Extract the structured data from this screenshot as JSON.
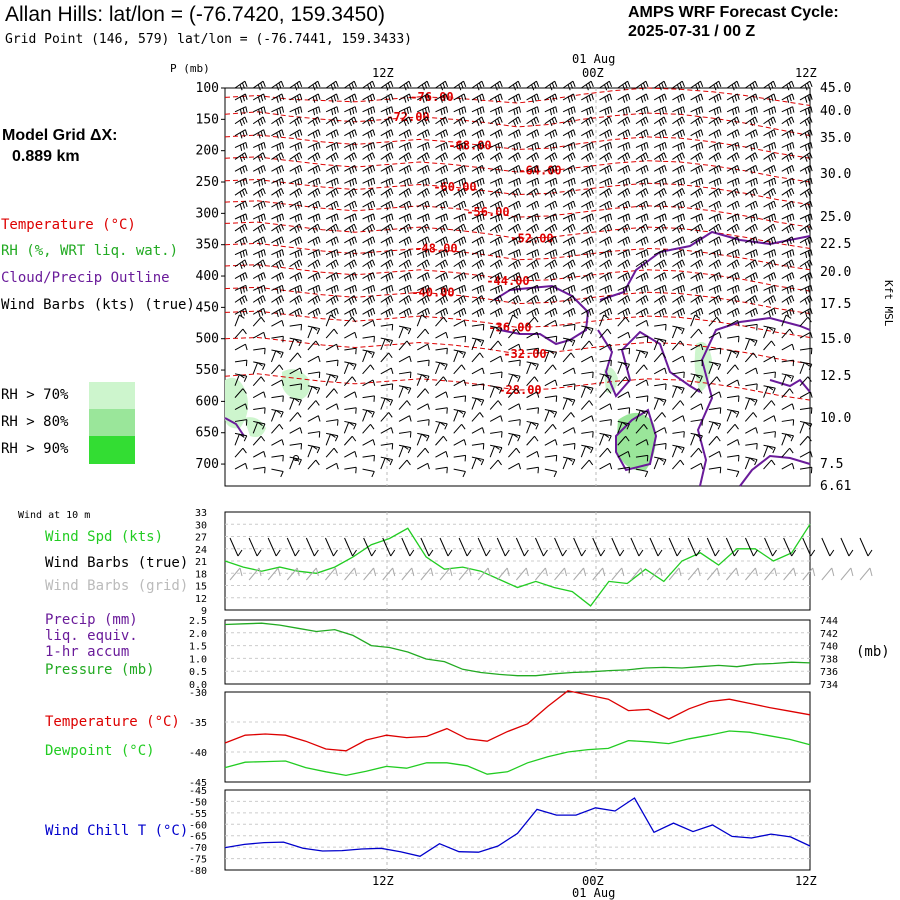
{
  "header": {
    "title": "Allan Hills:  lat/lon = (-76.7420, 159.3450)",
    "subtitle": "Grid Point (146, 579) lat/lon = (-76.7441, 159.3433)",
    "cycle_line1": "AMPS WRF Forecast Cycle:",
    "cycle_line2": "2025-07-31 / 00  Z"
  },
  "model_grid": {
    "line1": "Model Grid ΔX:",
    "line2": "0.889 km"
  },
  "legend": {
    "temperature": "Temperature (°C)",
    "rh": "RH (%, WRT liq. wat.)",
    "cloud": "Cloud/Precip Outline",
    "wind": "Wind Barbs (kts) (true)",
    "rh70": "RH > 70%",
    "rh80": "RH > 80%",
    "rh90": "RH > 90%"
  },
  "colors": {
    "temperature": "#dd0000",
    "rh": "#22aa22",
    "cloud": "#6a1b9a",
    "wind": "#000000",
    "wind_grid": "#aaaaaa",
    "rh70": "#cdf5cd",
    "rh80": "#9ae69a",
    "rh90": "#33dd33",
    "wind_speed": "#22cc22",
    "precip": "#6a1b9a",
    "pressure": "#22aa22",
    "temp_line": "#dd0000",
    "dewpoint": "#22cc22",
    "windchill": "#0000cc"
  },
  "time_axis": {
    "labels": [
      "12Z",
      "00Z",
      "12Z"
    ],
    "date_label": "01 Aug"
  },
  "panel_labels": {
    "p_axis": "P (mb)",
    "kft": "Kft MSL",
    "wind_at": "Wind at 10 m",
    "wind_spd": "Wind Spd (kts)",
    "wind_barbs_true": "Wind Barbs (true)",
    "wind_barbs_grid": "Wind Barbs (grid)",
    "precip1": "Precip (mm)",
    "precip2": "liq. equiv.",
    "precip3": "1-hr accum",
    "pressure": "Pressure (mb)",
    "mb_unit": "(mb)",
    "temperature": "Temperature (°C)",
    "dewpoint": "Dewpoint (°C)",
    "windchill": "Wind Chill T (°C)"
  },
  "chart_data": [
    {
      "type": "heatmap",
      "name": "upper_air",
      "y_pressure_ticks": [
        "100",
        "150",
        "200",
        "250",
        "300",
        "350",
        "400",
        "450",
        "500",
        "550",
        "600",
        "650",
        "700"
      ],
      "y_height_ticks": [
        "45.0",
        "40.0",
        "35.0",
        "30.0",
        "25.0",
        "22.5",
        "20.0",
        "17.5",
        "15.0",
        "12.5",
        "10.0",
        "7.5",
        "6.61"
      ],
      "temperature_contours": [
        {
          "label": "-76.00",
          "value": -76,
          "p": [
            115,
            112,
            118,
            120,
            122,
            118,
            114,
            116,
            120,
            124,
            118,
            110,
            104,
            100,
            102,
            106,
            112,
            120,
            128
          ]
        },
        {
          "label": "-72.00",
          "value": -72,
          "p": [
            142,
            138,
            145,
            150,
            154,
            150,
            146,
            150,
            155,
            162,
            158,
            150,
            144,
            140,
            142,
            148,
            156,
            166,
            176
          ]
        },
        {
          "label": "-68.00",
          "value": -68,
          "p": [
            178,
            175,
            180,
            186,
            190,
            186,
            182,
            186,
            192,
            198,
            196,
            188,
            182,
            178,
            180,
            186,
            194,
            204,
            212
          ]
        },
        {
          "label": "-64.00",
          "value": -64,
          "p": [
            212,
            210,
            216,
            222,
            226,
            222,
            218,
            222,
            228,
            234,
            232,
            226,
            220,
            216,
            218,
            224,
            232,
            242,
            250
          ]
        },
        {
          "label": "-60.00",
          "value": -60,
          "p": [
            248,
            246,
            252,
            258,
            262,
            258,
            254,
            258,
            264,
            270,
            268,
            262,
            256,
            252,
            254,
            260,
            268,
            278,
            286
          ]
        },
        {
          "label": "-56.00",
          "value": -56,
          "p": [
            282,
            280,
            286,
            292,
            296,
            292,
            288,
            292,
            298,
            306,
            304,
            298,
            292,
            288,
            290,
            296,
            304,
            314,
            322
          ]
        },
        {
          "label": "-52.00",
          "value": -52,
          "p": [
            316,
            314,
            320,
            326,
            330,
            326,
            322,
            326,
            332,
            340,
            338,
            332,
            326,
            322,
            324,
            330,
            338,
            348,
            356
          ]
        },
        {
          "label": "-48.00",
          "value": -48,
          "p": [
            350,
            348,
            354,
            360,
            364,
            360,
            356,
            360,
            366,
            374,
            372,
            366,
            360,
            356,
            358,
            364,
            372,
            382,
            390
          ]
        },
        {
          "label": "-44.00",
          "value": -44,
          "p": [
            384,
            382,
            388,
            394,
            398,
            394,
            390,
            394,
            400,
            408,
            406,
            400,
            394,
            390,
            392,
            398,
            406,
            416,
            424
          ]
        },
        {
          "label": "-40.00",
          "value": -40,
          "p": [
            420,
            418,
            424,
            430,
            434,
            430,
            426,
            430,
            436,
            444,
            442,
            436,
            430,
            426,
            428,
            434,
            442,
            452,
            460
          ]
        },
        {
          "label": "-36.00",
          "value": -36,
          "p": [
            458,
            456,
            462,
            468,
            472,
            468,
            464,
            468,
            474,
            482,
            480,
            474,
            468,
            464,
            466,
            472,
            480,
            490,
            498
          ]
        },
        {
          "label": "-32.00",
          "value": -32,
          "p": [
            500,
            498,
            504,
            510,
            514,
            510,
            506,
            510,
            516,
            524,
            522,
            516,
            510,
            506,
            508,
            514,
            522,
            532,
            540
          ]
        },
        {
          "label": "-28.00",
          "value": -28,
          "p": [
            560,
            556,
            562,
            568,
            572,
            568,
            564,
            568,
            574,
            582,
            580,
            574,
            568,
            564,
            566,
            572,
            580,
            590,
            598
          ]
        }
      ]
    },
    {
      "type": "line",
      "name": "wind_speed",
      "ylim": [
        9,
        33
      ],
      "yticks": [
        "33",
        "30",
        "27",
        "24",
        "21",
        "18",
        "15",
        "12",
        "9"
      ],
      "series": [
        {
          "name": "Wind Spd (kts)",
          "values": [
            21,
            19.5,
            18.5,
            19.5,
            18.5,
            18,
            19.5,
            22,
            25,
            26.5,
            29,
            22,
            19,
            19.5,
            18.5,
            16.5,
            14.5,
            16,
            14.5,
            13.5,
            10,
            16,
            15.5,
            19,
            16,
            21,
            23,
            20,
            24,
            24,
            21,
            23,
            30
          ]
        }
      ]
    },
    {
      "type": "line",
      "name": "precip_pressure",
      "ylim": [
        0,
        2.5
      ],
      "yticks": [
        "2.5",
        "2.0",
        "1.5",
        "1.0",
        "0.5",
        "0.0"
      ],
      "y2ticks": [
        "744",
        "742",
        "740",
        "738",
        "736",
        "734"
      ],
      "series": [
        {
          "name": "Pressure (mb)",
          "values": [
            743.3,
            743.4,
            743.5,
            743.2,
            742.7,
            742.2,
            742.5,
            741.6,
            740.0,
            739.7,
            739.0,
            737.9,
            737.5,
            736.3,
            735.8,
            735.5,
            735.3,
            735.3,
            735.6,
            735.8,
            735.9,
            736.1,
            736.2,
            736.5,
            736.6,
            736.5,
            736.7,
            736.9,
            736.7,
            737.1,
            737.2,
            737.4,
            737.3
          ]
        }
      ]
    },
    {
      "type": "line",
      "name": "temperature_dewpoint",
      "ylim": [
        -45,
        -30
      ],
      "yticks": [
        "-30",
        "-35",
        "-40",
        "-45"
      ],
      "series": [
        {
          "name": "Temperature (°C)",
          "values": [
            -38.5,
            -37.2,
            -37.0,
            -37.2,
            -38.2,
            -39.5,
            -39.8,
            -38.0,
            -37.2,
            -37.6,
            -37.4,
            -36.1,
            -37.8,
            -38.2,
            -36.6,
            -35.3,
            -32.4,
            -29.8,
            -30.5,
            -31.2,
            -33.1,
            -32.9,
            -34.5,
            -32.8,
            -31.6,
            -31.2,
            -31.9,
            -32.6,
            -33.2,
            -33.8
          ]
        },
        {
          "name": "Dewpoint (°C)",
          "values": [
            -42.6,
            -41.7,
            -41.6,
            -41.5,
            -42.6,
            -43.3,
            -43.9,
            -43.2,
            -42.4,
            -42.7,
            -41.8,
            -41.8,
            -42.3,
            -43.7,
            -43.3,
            -41.8,
            -40.8,
            -40.0,
            -39.6,
            -39.4,
            -38.1,
            -38.3,
            -38.6,
            -37.8,
            -37.2,
            -36.5,
            -36.7,
            -37.3,
            -37.9,
            -38.8
          ]
        }
      ]
    },
    {
      "type": "line",
      "name": "wind_chill",
      "ylim": [
        -80,
        -45
      ],
      "yticks": [
        "-45",
        "-50",
        "-55",
        "-60",
        "-65",
        "-70",
        "-75",
        "-80"
      ],
      "series": [
        {
          "name": "Wind Chill T (°C)",
          "values": [
            -70.2,
            -68.8,
            -68.0,
            -67.8,
            -70.5,
            -71.7,
            -71.5,
            -70.8,
            -70.5,
            -72.0,
            -74.0,
            -68.5,
            -72.0,
            -72.2,
            -69.5,
            -64.0,
            -53.5,
            -56.0,
            -56.0,
            -52.8,
            -54.2,
            -48.5,
            -63.5,
            -59.5,
            -63.2,
            -60.3,
            -65.3,
            -66.0,
            -64.3,
            -65.5,
            -69.5
          ]
        }
      ]
    }
  ]
}
